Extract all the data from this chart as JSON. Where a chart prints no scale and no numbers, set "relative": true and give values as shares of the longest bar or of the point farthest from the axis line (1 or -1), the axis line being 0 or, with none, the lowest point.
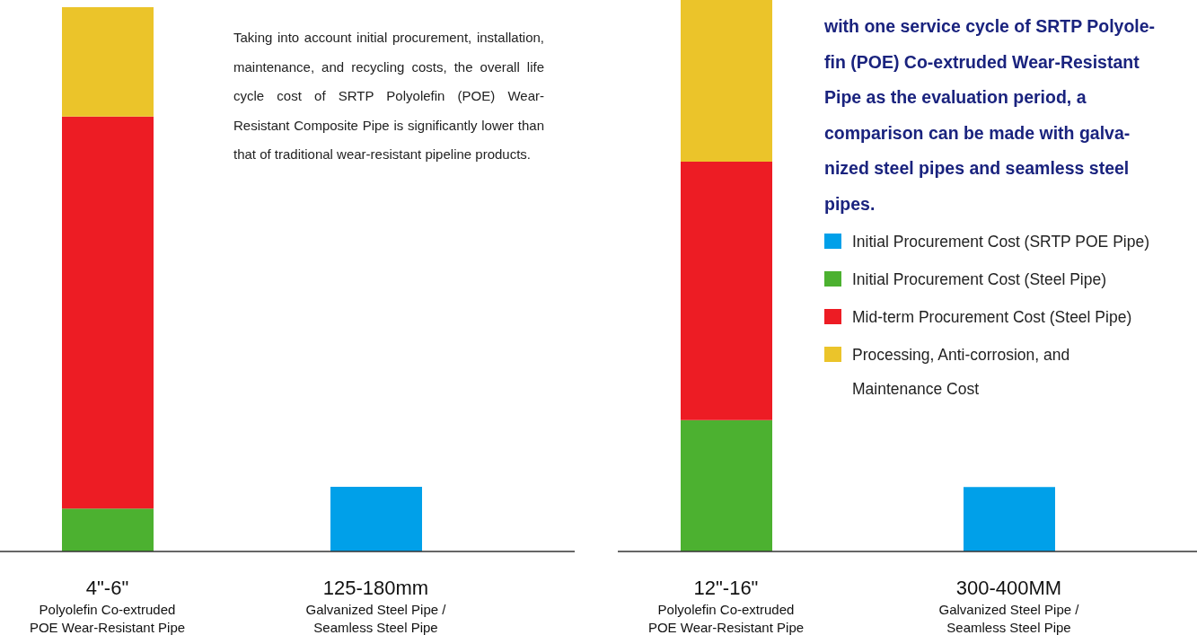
{
  "chart_data": [
    {
      "type": "bar",
      "stacked": true,
      "relative": true,
      "categories": [
        "4\"-6\"\nPolyolefin Co-extruded\nPOE Wear-Resistant Pipe",
        "125-180mm\nGalvanized Steel Pipe /\nSeamless Steel Pipe"
      ],
      "series": [
        {
          "color": "#00a0e9",
          "values": [
            null,
            0.119
          ]
        },
        {
          "color": "#4cb130",
          "values": [
            0.079,
            null
          ]
        },
        {
          "color": "#ed1c24",
          "values": [
            0.72,
            null
          ]
        },
        {
          "color": "#ebc42a",
          "values": [
            0.201,
            null
          ]
        }
      ],
      "annotations": [
        "Taking into account initial procurement, installation, maintenance, and recycling costs, the overall life cycle cost of SRTP Polyolefin (POE) Wear-Resistant Composite Pipe is significantly lower than that of traditional wear-resistant pipeline products."
      ]
    },
    {
      "type": "bar",
      "stacked": true,
      "relative": true,
      "legend": "right",
      "categories": [
        "12\"-16\"\nPolyolefin Co-extruded\nPOE Wear-Resistant Pipe",
        "300-400MM\nGalvanized Steel Pipe /\nSeamless Steel Pipe"
      ],
      "series": [
        {
          "name": "Initial Procurement Cost (SRTP POE Pipe)",
          "color": "#00a0e9",
          "values": [
            null,
            0.117
          ]
        },
        {
          "name": "Initial Procurement Cost (Steel Pipe)",
          "color": "#4cb130",
          "values": [
            0.238,
            null
          ]
        },
        {
          "name": "Mid-term Procurement Cost (Steel Pipe)",
          "color": "#ed1c24",
          "values": [
            0.469,
            null
          ]
        },
        {
          "name": "Processing, Anti-corrosion, and\nMaintenance Cost",
          "color": "#ebc42a",
          "values": [
            0.293,
            null
          ]
        }
      ],
      "annotations": [
        "with one service cycle of SRTP Polyole-\nfin (POE) Co-extruded Wear-Resistant\nPipe as the evaluation period, a\ncomparison can be made with galva-\nnized steel pipes and seamless steel\npipes."
      ]
    }
  ]
}
